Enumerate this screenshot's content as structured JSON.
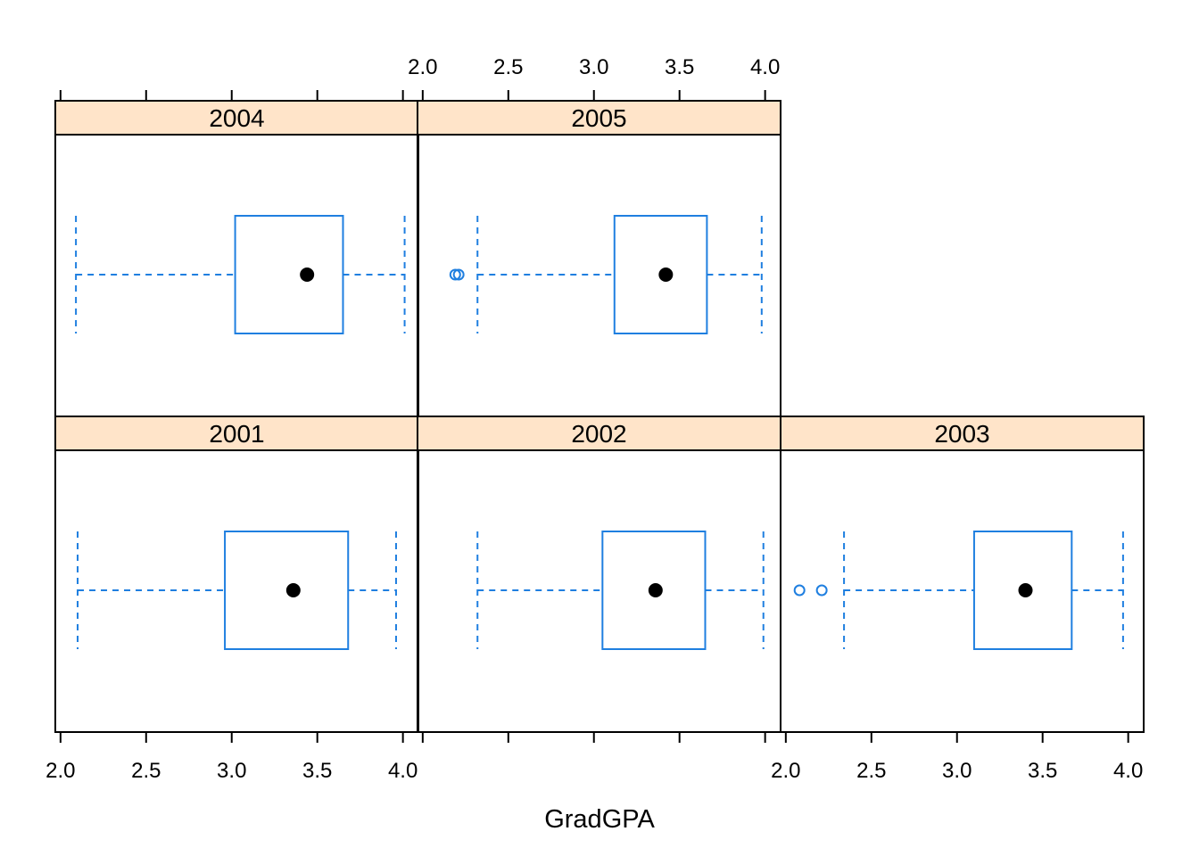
{
  "chart_data": {
    "type": "boxplot",
    "layout": "trellis 3 columns x 2 rows, panels filled bottom-left first",
    "xlabel": "GradGPA",
    "xlim": [
      1.98,
      4.08
    ],
    "x_ticks": [
      2.0,
      2.5,
      3.0,
      3.5,
      4.0
    ],
    "x_tick_labels": [
      "2.0",
      "2.5",
      "3.0",
      "3.5",
      "4.0"
    ],
    "colors": {
      "box": "#1f7fe0",
      "median": "#000000",
      "strip": "#ffe4c9",
      "frame": "#000000"
    },
    "panels": [
      {
        "label": "2001",
        "row": 0,
        "col": 0,
        "whisker_low": 2.1,
        "q1": 2.96,
        "median": 3.36,
        "q3": 3.68,
        "whisker_high": 3.96,
        "outliers": []
      },
      {
        "label": "2002",
        "row": 0,
        "col": 1,
        "whisker_low": 2.32,
        "q1": 3.05,
        "median": 3.36,
        "q3": 3.65,
        "whisker_high": 3.99,
        "outliers": []
      },
      {
        "label": "2003",
        "row": 0,
        "col": 2,
        "whisker_low": 2.34,
        "q1": 3.1,
        "median": 3.4,
        "q3": 3.67,
        "whisker_high": 3.97,
        "outliers": [
          2.08,
          2.21
        ]
      },
      {
        "label": "2004",
        "row": 1,
        "col": 0,
        "whisker_low": 2.09,
        "q1": 3.02,
        "median": 3.44,
        "q3": 3.65,
        "whisker_high": 4.01,
        "outliers": []
      },
      {
        "label": "2005",
        "row": 1,
        "col": 1,
        "whisker_low": 2.32,
        "q1": 3.12,
        "median": 3.42,
        "q3": 3.66,
        "whisker_high": 3.98,
        "outliers": [
          2.19,
          2.21
        ]
      }
    ]
  }
}
